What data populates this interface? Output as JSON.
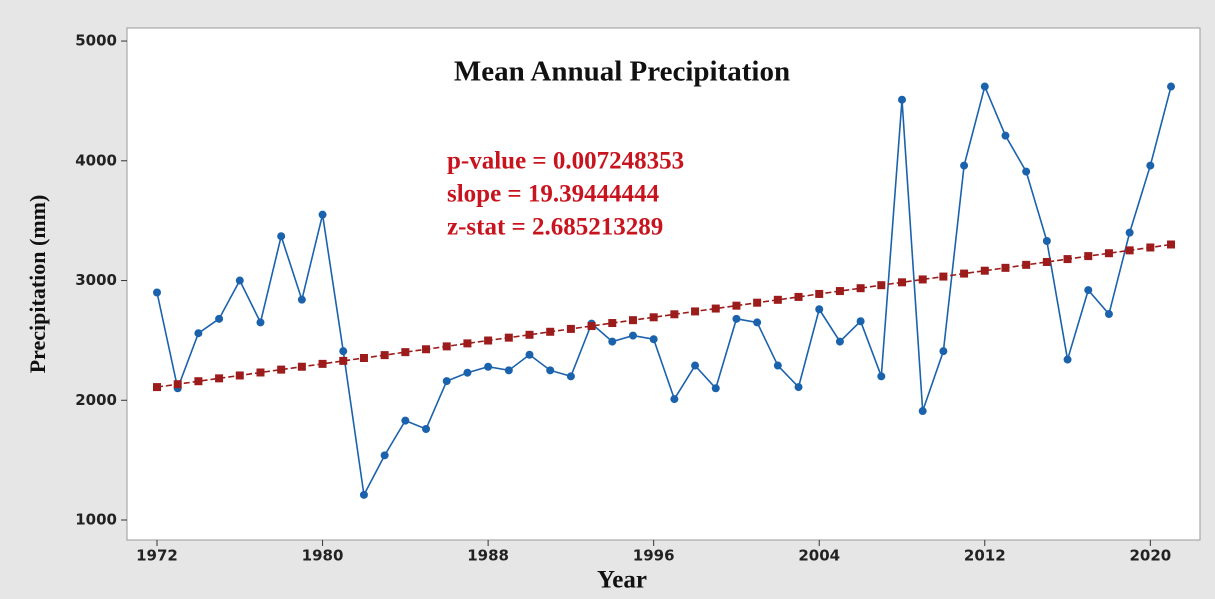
{
  "chart_data": {
    "type": "line",
    "title": "Mean Annual Precipitation",
    "x_label": "Year",
    "y_label": "Precipitation (mm)",
    "annotations": [
      "p-value = 0.007248353",
      "slope =  19.39444444",
      "z-stat = 2.685213289"
    ],
    "x": [
      1972,
      1973,
      1974,
      1975,
      1976,
      1977,
      1978,
      1979,
      1980,
      1981,
      1982,
      1983,
      1984,
      1985,
      1986,
      1987,
      1988,
      1989,
      1990,
      1991,
      1992,
      1993,
      1994,
      1995,
      1996,
      1997,
      1998,
      1999,
      2000,
      2001,
      2002,
      2003,
      2004,
      2005,
      2006,
      2007,
      2008,
      2009,
      2010,
      2011,
      2012,
      2013,
      2014,
      2015,
      2016,
      2017,
      2018,
      2019,
      2020,
      2021
    ],
    "series": [
      {
        "color": "#1b62ad",
        "marker": "circle",
        "dashed": false,
        "values": [
          2900,
          2100,
          2560,
          2680,
          3000,
          2650,
          3370,
          2840,
          3550,
          2410,
          1210,
          1540,
          1830,
          1760,
          2160,
          2230,
          2280,
          2250,
          2380,
          2250,
          2200,
          2640,
          2490,
          2540,
          2510,
          2010,
          2290,
          2100,
          2680,
          2650,
          2290,
          2110,
          2760,
          2490,
          2660,
          2200,
          4510,
          1910,
          2410,
          3960,
          4620,
          4210,
          3910,
          3330,
          2340,
          2920,
          2720,
          3400,
          3960,
          4620
        ]
      },
      {
        "color": "#9c1b1b",
        "marker": "square",
        "dashed": true,
        "values": [
          2110,
          2134,
          2159,
          2183,
          2207,
          2232,
          2256,
          2280,
          2304,
          2329,
          2353,
          2377,
          2402,
          2426,
          2450,
          2475,
          2499,
          2523,
          2547,
          2572,
          2596,
          2620,
          2645,
          2669,
          2693,
          2718,
          2742,
          2766,
          2790,
          2815,
          2839,
          2863,
          2888,
          2912,
          2936,
          2961,
          2985,
          3009,
          3033,
          3058,
          3082,
          3106,
          3131,
          3155,
          3179,
          3204,
          3228,
          3252,
          3276,
          3301
        ]
      }
    ],
    "xlim": [
      1970.55,
      2022.4
    ],
    "xticks": [
      1972,
      1980,
      1988,
      1996,
      2004,
      2012,
      2020
    ],
    "ylim": [
      833,
      5109
    ],
    "yticks": [
      1000,
      2000,
      3000,
      4000,
      5000
    ],
    "grid": false
  }
}
